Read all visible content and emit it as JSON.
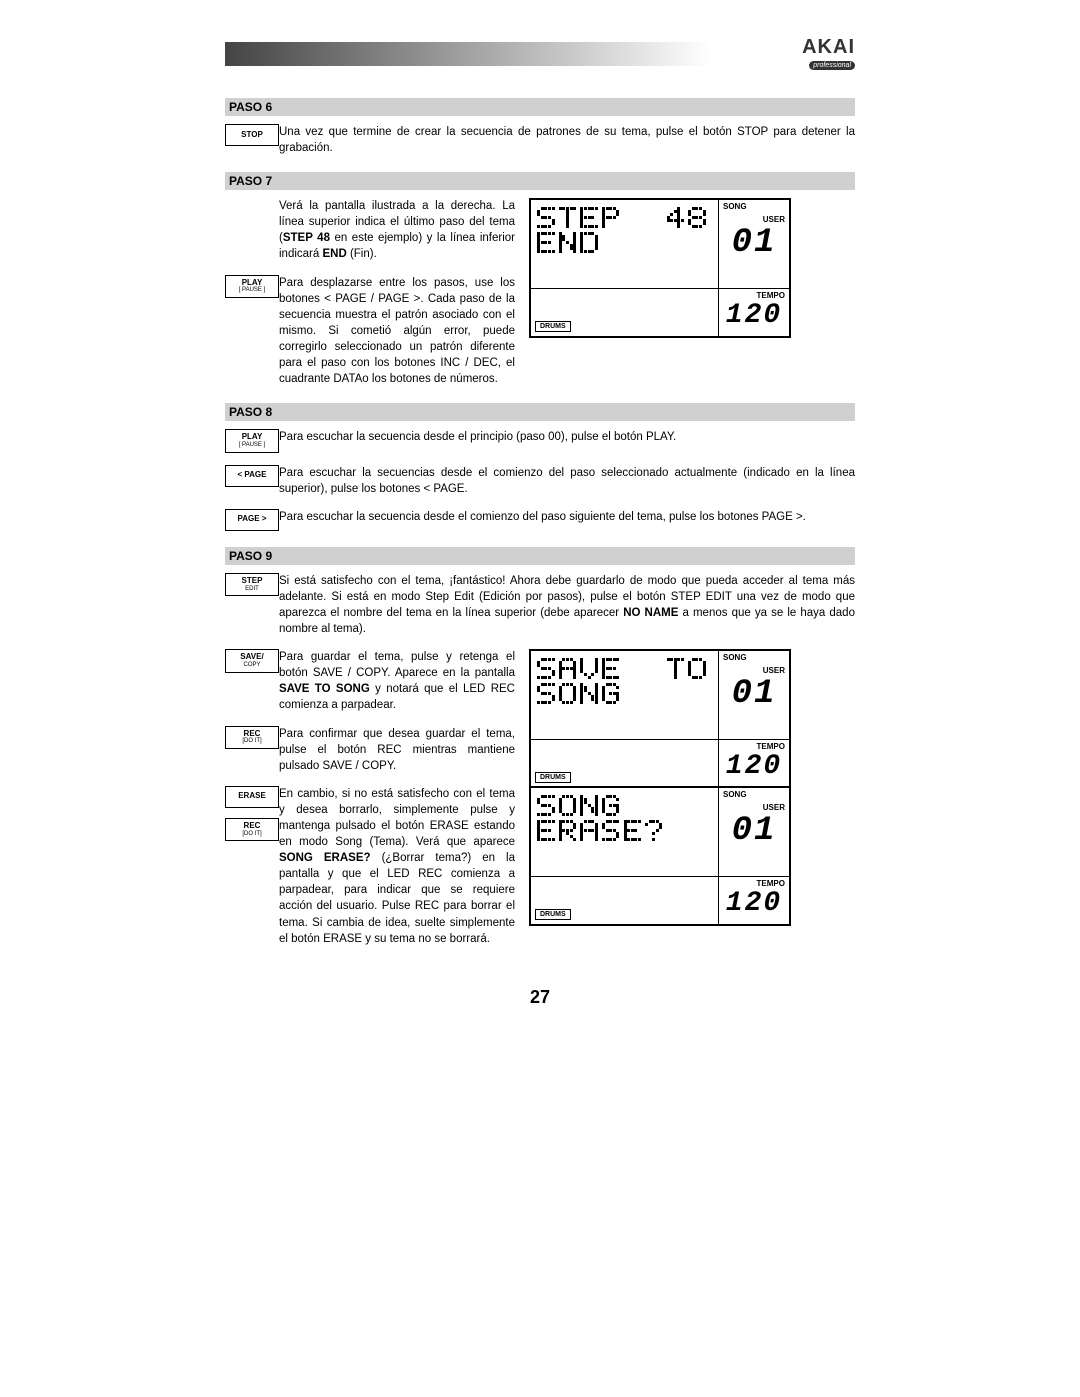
{
  "logo": {
    "brand": "AKAI",
    "sub": "professional"
  },
  "steps": {
    "paso6": {
      "heading": "PASO 6",
      "btn_stop": "STOP",
      "text": "Una vez que termine de crear la secuencia de patrones de su tema, pulse el botón STOP para detener la grabación."
    },
    "paso7": {
      "heading": "PASO 7",
      "text_a_prefix": "Verá la pantalla ilustrada a la derecha.  La línea superior indica el último paso del tema (",
      "text_a_bold": "STEP 48",
      "text_a_mid": " en este ejemplo) y la línea inferior indicará ",
      "text_a_bold2": "END",
      "text_a_suffix": " (Fin).",
      "btn_play": "PLAY",
      "btn_play_sub": "[ PAUSE ]",
      "text_b": "Para desplazarse entre los pasos, use los botones < PAGE / PAGE >.  Cada paso de la secuencia muestra el patrón asociado con el mismo.  Si cometió algún error, puede corregirlo seleccionado un patrón diferente para el paso con los botones INC / DEC, el cuadrante DATAo los botones de números.",
      "lcd": {
        "line1": "STEP  48",
        "line2": "END",
        "song_label": "SONG",
        "user_label": "USER",
        "song_val": "01",
        "tempo_label": "TEMPO",
        "tempo_val": "120",
        "drums": "DRUMS"
      }
    },
    "paso8": {
      "heading": "PASO 8",
      "btn_play": "PLAY",
      "btn_play_sub": "[ PAUSE ]",
      "text_a": "Para escuchar la secuencia desde el principio (paso 00), pulse el botón PLAY.",
      "btn_page_l": "< PAGE",
      "text_b": "Para escuchar la secuencias desde el comienzo del paso seleccionado actualmente (indicado en la línea superior), pulse los botones < PAGE.",
      "btn_page_r": "PAGE >",
      "text_c": "Para escuchar la secuencia desde el comienzo del paso siguiente del tema, pulse los botones PAGE >."
    },
    "paso9": {
      "heading": "PASO 9",
      "btn_step_edit": "STEP",
      "btn_step_edit_sub": "EDIT",
      "text_a_prefix": "Si está satisfecho con el tema, ¡fantástico!  Ahora debe guardarlo de modo que pueda acceder al tema más adelante.  Si está en modo Step Edit (Edición por pasos), pulse el botón STEP EDIT una vez de modo que aparezca el nombre del tema en la línea superior (debe aparecer ",
      "text_a_bold": "NO NAME",
      "text_a_suffix": " a menos que ya se le haya dado nombre al tema).",
      "btn_save": "SAVE/",
      "btn_save_sub": "COPY",
      "text_b_prefix": "Para guardar el tema, pulse y retenga el botón SAVE / COPY.  Aparece en la pantalla ",
      "text_b_bold": "SAVE TO SONG",
      "text_b_suffix": " y notará que el LED REC comienza a parpadear.",
      "btn_rec": "REC",
      "btn_rec_sub": "[DO IT]",
      "text_c": "Para confirmar que desea guardar el tema, pulse el botón REC mientras mantiene pulsado SAVE / COPY.",
      "btn_erase": "ERASE",
      "text_d_prefix": "En cambio, si no está satisfecho con el tema y desea borrarlo, simplemente pulse y mantenga pulsado el botón ERASE estando en modo Song (Tema).  Verá que aparece ",
      "text_d_bold": "SONG ERASE?",
      "text_d_suffix": " (¿Borrar tema?) en la pantalla y que el LED REC comienza a parpadear, para indicar que se requiere acción del usuario.  Pulse REC para borrar el tema.  Si cambia de idea, suelte simplemente el botón ERASE y su tema no se borrará.",
      "lcd2": {
        "line1": "SAVE  TO",
        "line2": "SONG",
        "song_label": "SONG",
        "user_label": "USER",
        "song_val": "01",
        "tempo_label": "TEMPO",
        "tempo_val": "120",
        "drums": "DRUMS"
      },
      "lcd3": {
        "line1": "SONG",
        "line2": "ERASE?",
        "song_label": "SONG",
        "user_label": "USER",
        "song_val": "01",
        "tempo_label": "TEMPO",
        "tempo_val": "120",
        "drums": "DRUMS"
      }
    }
  },
  "page_number": "27",
  "dotfont": {
    "S": [
      "01111",
      "10000",
      "10000",
      "01110",
      "00001",
      "00001",
      "11110"
    ],
    "T": [
      "11111",
      "00100",
      "00100",
      "00100",
      "00100",
      "00100",
      "00100"
    ],
    "E": [
      "11111",
      "10000",
      "10000",
      "11110",
      "10000",
      "10000",
      "11111"
    ],
    "P": [
      "11110",
      "10001",
      "10001",
      "11110",
      "10000",
      "10000",
      "10000"
    ],
    "N": [
      "10001",
      "11001",
      "11001",
      "10101",
      "10011",
      "10011",
      "10001"
    ],
    "D": [
      "11110",
      "10001",
      "10001",
      "10001",
      "10001",
      "10001",
      "11110"
    ],
    "A": [
      "01110",
      "10001",
      "10001",
      "11111",
      "10001",
      "10001",
      "10001"
    ],
    "V": [
      "10001",
      "10001",
      "10001",
      "10001",
      "10001",
      "01010",
      "00100"
    ],
    "O": [
      "01110",
      "10001",
      "10001",
      "10001",
      "10001",
      "10001",
      "01110"
    ],
    "G": [
      "01110",
      "10001",
      "10000",
      "10111",
      "10001",
      "10001",
      "01110"
    ],
    "R": [
      "11110",
      "10001",
      "10001",
      "11110",
      "10100",
      "10010",
      "10001"
    ],
    "?": [
      "01110",
      "10001",
      "00001",
      "00010",
      "00100",
      "00000",
      "00100"
    ],
    "4": [
      "00010",
      "00110",
      "01010",
      "10010",
      "11111",
      "00010",
      "00010"
    ],
    "8": [
      "01110",
      "10001",
      "10001",
      "01110",
      "10001",
      "10001",
      "01110"
    ],
    "0": [
      "01110",
      "10001",
      "10011",
      "10101",
      "11001",
      "10001",
      "01110"
    ],
    "1": [
      "00100",
      "01100",
      "00100",
      "00100",
      "00100",
      "00100",
      "01110"
    ],
    " ": [
      "00000",
      "00000",
      "00000",
      "00000",
      "00000",
      "00000",
      "00000"
    ]
  }
}
